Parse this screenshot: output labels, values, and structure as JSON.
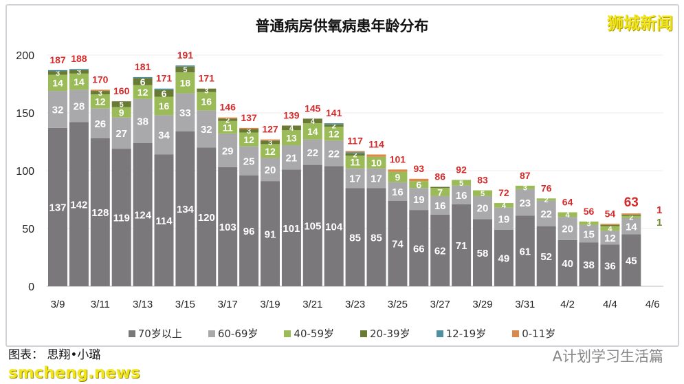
{
  "title": "普通病房供氧病患年龄分布",
  "brand": "狮城新闻",
  "credit": "图表： 思翔•小璐",
  "site_watermark": "smcheng.news",
  "wechat_watermark": "A计划学习生活篇",
  "chart_data": {
    "type": "bar",
    "stacked": true,
    "title": "普通病房供氧病患年龄分布",
    "ylim": [
      0,
      200
    ],
    "yticks": [
      0,
      50,
      100,
      150,
      200
    ],
    "grid": true,
    "legend_position": "bottom",
    "categories": [
      "3/9",
      "3/10",
      "3/11",
      "3/12",
      "3/13",
      "3/14",
      "3/15",
      "3/16",
      "3/17",
      "3/18",
      "3/19",
      "3/20",
      "3/21",
      "3/22",
      "3/23",
      "3/24",
      "3/25",
      "3/26",
      "3/27",
      "3/28",
      "3/29",
      "3/30",
      "3/31",
      "4/1",
      "4/2",
      "4/3",
      "4/4",
      "4/5"
    ],
    "xtick_labels": [
      "3/9",
      "3/11",
      "3/13",
      "3/15",
      "3/17",
      "3/19",
      "3/21",
      "3/23",
      "3/25",
      "3/27",
      "3/29",
      "3/31",
      "4/2",
      "4/4",
      "4/6"
    ],
    "series": [
      {
        "name": "70岁以上",
        "color": "#7a787b",
        "values": [
          137,
          142,
          128,
          119,
          124,
          114,
          134,
          120,
          103,
          96,
          91,
          101,
          105,
          104,
          85,
          85,
          74,
          66,
          62,
          71,
          58,
          49,
          61,
          52,
          40,
          38,
          36,
          45
        ]
      },
      {
        "name": "60-69岁",
        "color": "#a9a9ab",
        "values": [
          32,
          28,
          26,
          27,
          38,
          34,
          33,
          32,
          29,
          25,
          20,
          21,
          22,
          22,
          17,
          17,
          16,
          19,
          16,
          16,
          20,
          19,
          23,
          22,
          20,
          15,
          12,
          14
        ]
      },
      {
        "name": "40-59岁",
        "color": "#9bbb59",
        "values": [
          14,
          14,
          12,
          9,
          12,
          16,
          18,
          16,
          11,
          12,
          12,
          13,
          14,
          12,
          11,
          10,
          9,
          6,
          7,
          5,
          5,
          4,
          3,
          2,
          4,
          3,
          4,
          2
        ]
      },
      {
        "name": "20-39岁",
        "color": "#687a34",
        "values": [
          3,
          3,
          3,
          5,
          6,
          6,
          5,
          3,
          2,
          3,
          3,
          4,
          4,
          2,
          2,
          0,
          0,
          0,
          1,
          0,
          0,
          0,
          0,
          0,
          0,
          0,
          1,
          1
        ]
      },
      {
        "name": "12-19岁",
        "color": "#4f8fa0",
        "values": [
          1,
          1,
          0,
          0,
          1,
          1,
          1,
          0,
          0,
          0,
          0,
          0,
          0,
          1,
          1,
          0,
          0,
          0,
          0,
          0,
          0,
          0,
          0,
          0,
          0,
          0,
          0,
          0
        ]
      },
      {
        "name": "0-11岁",
        "color": "#d9894a",
        "values": [
          0,
          0,
          1,
          0,
          0,
          0,
          0,
          0,
          1,
          1,
          1,
          0,
          0,
          0,
          1,
          2,
          2,
          2,
          0,
          0,
          0,
          0,
          0,
          0,
          0,
          0,
          1,
          1
        ]
      }
    ],
    "totals": [
      187,
      188,
      170,
      160,
      181,
      171,
      191,
      171,
      146,
      137,
      127,
      139,
      145,
      141,
      117,
      114,
      101,
      93,
      86,
      92,
      83,
      72,
      87,
      76,
      64,
      56,
      54,
      63
    ],
    "total_color": "#d42a2a",
    "annotations": [
      {
        "text": "1",
        "color": "#d42a2a"
      },
      {
        "text": "1",
        "color": "#6e8a2c"
      }
    ]
  }
}
